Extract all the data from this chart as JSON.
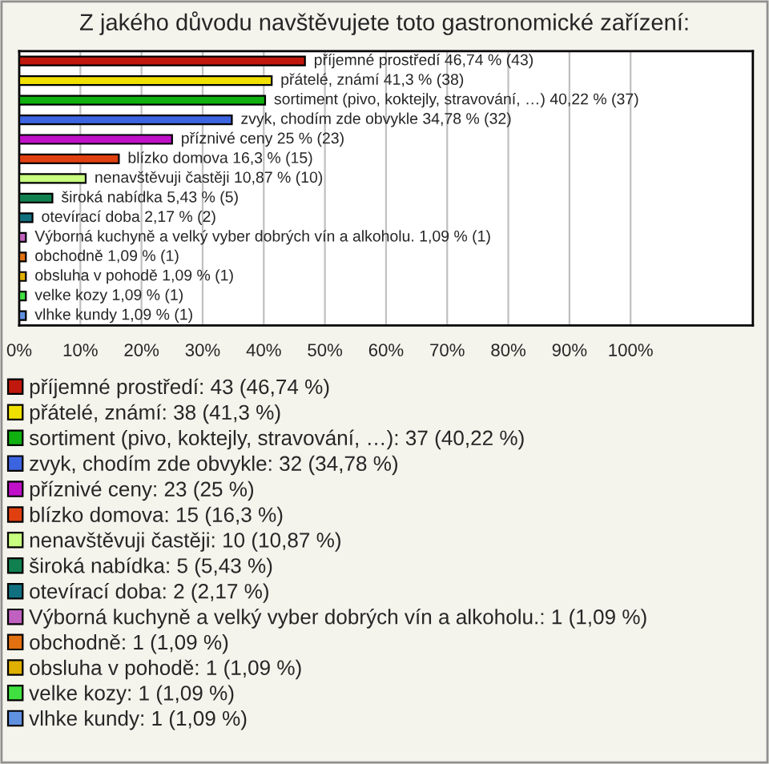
{
  "chart_data": {
    "type": "bar",
    "orientation": "horizontal",
    "title": "Z jakého důvodu navštěvujete toto gastronomické zařízení:",
    "categories": [
      null,
      null,
      null,
      null,
      null,
      null,
      null,
      null,
      null,
      null,
      null,
      null,
      null,
      null
    ],
    "series": [
      {
        "name": "příjemné prostředí: 43 (46,74 %)",
        "color": "#c0180c",
        "values": [
          46.74,
          null,
          null,
          null,
          null,
          null,
          null,
          null,
          null,
          null,
          null,
          null,
          null,
          null
        ],
        "value_labels": [
          "příjemné prostředí 46,74 % (43)",
          null,
          null,
          null,
          null,
          null,
          null,
          null,
          null,
          null,
          null,
          null,
          null,
          null
        ]
      },
      {
        "name": "přátelé, známí: 38 (41,3 %)",
        "color": "#f0e000",
        "values": [
          null,
          41.3,
          null,
          null,
          null,
          null,
          null,
          null,
          null,
          null,
          null,
          null,
          null,
          null
        ],
        "value_labels": [
          null,
          "přátelé, známí 41,3 % (38)",
          null,
          null,
          null,
          null,
          null,
          null,
          null,
          null,
          null,
          null,
          null,
          null
        ]
      },
      {
        "name": "sortiment (pivo, koktejly, stravování, …): 37 (40,22 %)",
        "color": "#10b010",
        "values": [
          null,
          null,
          40.22,
          null,
          null,
          null,
          null,
          null,
          null,
          null,
          null,
          null,
          null,
          null
        ],
        "value_labels": [
          null,
          null,
          "sortiment (pivo, koktejly, stravování, …) 40,22 % (37)",
          null,
          null,
          null,
          null,
          null,
          null,
          null,
          null,
          null,
          null,
          null
        ]
      },
      {
        "name": "zvyk, chodím zde obvykle: 32 (34,78 %)",
        "color": "#3c64e0",
        "values": [
          null,
          null,
          null,
          34.78,
          null,
          null,
          null,
          null,
          null,
          null,
          null,
          null,
          null,
          null
        ],
        "value_labels": [
          null,
          null,
          null,
          "zvyk, chodím zde obvykle 34,78 % (32)",
          null,
          null,
          null,
          null,
          null,
          null,
          null,
          null,
          null,
          null
        ]
      },
      {
        "name": "příznivé ceny: 23 (25 %)",
        "color": "#c010c8",
        "values": [
          null,
          null,
          null,
          null,
          25,
          null,
          null,
          null,
          null,
          null,
          null,
          null,
          null,
          null
        ],
        "value_labels": [
          null,
          null,
          null,
          null,
          "příznivé ceny 25 % (23)",
          null,
          null,
          null,
          null,
          null,
          null,
          null,
          null,
          null
        ]
      },
      {
        "name": "blízko domova: 15 (16,3 %)",
        "color": "#e04010",
        "values": [
          null,
          null,
          null,
          null,
          null,
          16.3,
          null,
          null,
          null,
          null,
          null,
          null,
          null,
          null
        ],
        "value_labels": [
          null,
          null,
          null,
          null,
          null,
          "blízko domova 16,3 % (15)",
          null,
          null,
          null,
          null,
          null,
          null,
          null,
          null
        ]
      },
      {
        "name": "nenavštěvuji častěji: 10 (10,87 %)",
        "color": "#c8ff80",
        "values": [
          null,
          null,
          null,
          null,
          null,
          null,
          10.87,
          null,
          null,
          null,
          null,
          null,
          null,
          null
        ],
        "value_labels": [
          null,
          null,
          null,
          null,
          null,
          null,
          "nenavštěvuji častěji 10,87 % (10)",
          null,
          null,
          null,
          null,
          null,
          null,
          null
        ]
      },
      {
        "name": "široká nabídka: 5 (5,43 %)",
        "color": "#108050",
        "values": [
          null,
          null,
          null,
          null,
          null,
          null,
          null,
          5.43,
          null,
          null,
          null,
          null,
          null,
          null
        ],
        "value_labels": [
          null,
          null,
          null,
          null,
          null,
          null,
          null,
          "široká nabídka 5,43 % (5)",
          null,
          null,
          null,
          null,
          null,
          null
        ]
      },
      {
        "name": "otevírací doba: 2 (2,17 %)",
        "color": "#107080",
        "values": [
          null,
          null,
          null,
          null,
          null,
          null,
          null,
          null,
          2.17,
          null,
          null,
          null,
          null,
          null
        ],
        "value_labels": [
          null,
          null,
          null,
          null,
          null,
          null,
          null,
          null,
          "otevírací doba 2,17 % (2)",
          null,
          null,
          null,
          null,
          null
        ]
      },
      {
        "name": "Výborná kuchyně a velký vyber dobrých vín a alkoholu.: 1 (1,09 %)",
        "color": "#c060c0",
        "values": [
          null,
          null,
          null,
          null,
          null,
          null,
          null,
          null,
          null,
          1.09,
          null,
          null,
          null,
          null
        ],
        "value_labels": [
          null,
          null,
          null,
          null,
          null,
          null,
          null,
          null,
          null,
          "Výborná kuchyně a velký vyber dobrých vín a alkoholu. 1,09 % (1)",
          null,
          null,
          null,
          null
        ]
      },
      {
        "name": "obchodně: 1 (1,09 %)",
        "color": "#e07010",
        "values": [
          null,
          null,
          null,
          null,
          null,
          null,
          null,
          null,
          null,
          null,
          1.09,
          null,
          null,
          null
        ],
        "value_labels": [
          null,
          null,
          null,
          null,
          null,
          null,
          null,
          null,
          null,
          null,
          "obchodně 1,09 % (1)",
          null,
          null,
          null
        ]
      },
      {
        "name": "obsluha v pohodě: 1 (1,09 %)",
        "color": "#e0b000",
        "values": [
          null,
          null,
          null,
          null,
          null,
          null,
          null,
          null,
          null,
          null,
          null,
          1.09,
          null,
          null
        ],
        "value_labels": [
          null,
          null,
          null,
          null,
          null,
          null,
          null,
          null,
          null,
          null,
          null,
          "obsluha v pohodě 1,09 % (1)",
          null,
          null
        ]
      },
      {
        "name": "velke kozy: 1 (1,09 %)",
        "color": "#40e040",
        "values": [
          null,
          null,
          null,
          null,
          null,
          null,
          null,
          null,
          null,
          null,
          null,
          null,
          1.09,
          null
        ],
        "value_labels": [
          null,
          null,
          null,
          null,
          null,
          null,
          null,
          null,
          null,
          null,
          null,
          null,
          "velke kozy 1,09 % (1)",
          null
        ]
      },
      {
        "name": "vlhke kundy: 1 (1,09 %)",
        "color": "#6090e0",
        "values": [
          null,
          null,
          null,
          null,
          null,
          null,
          null,
          null,
          null,
          null,
          null,
          null,
          null,
          1.09
        ],
        "value_labels": [
          null,
          null,
          null,
          null,
          null,
          null,
          null,
          null,
          null,
          null,
          null,
          null,
          null,
          "vlhke kundy 1,09 % (1)"
        ]
      }
    ],
    "xlim": [
      0,
      120
    ],
    "xticks": [
      {
        "value": 0,
        "label": "0%"
      },
      {
        "value": 10,
        "label": "10%"
      },
      {
        "value": 20,
        "label": "20%"
      },
      {
        "value": 30,
        "label": "30%"
      },
      {
        "value": 40,
        "label": "40%"
      },
      {
        "value": 50,
        "label": "50%"
      },
      {
        "value": 60,
        "label": "60%"
      },
      {
        "value": 70,
        "label": "70%"
      },
      {
        "value": 80,
        "label": "80%"
      },
      {
        "value": 90,
        "label": "90%"
      },
      {
        "value": 100,
        "label": "100%"
      }
    ],
    "grid": "x",
    "legend": "bottom",
    "tick_labels": "x"
  }
}
